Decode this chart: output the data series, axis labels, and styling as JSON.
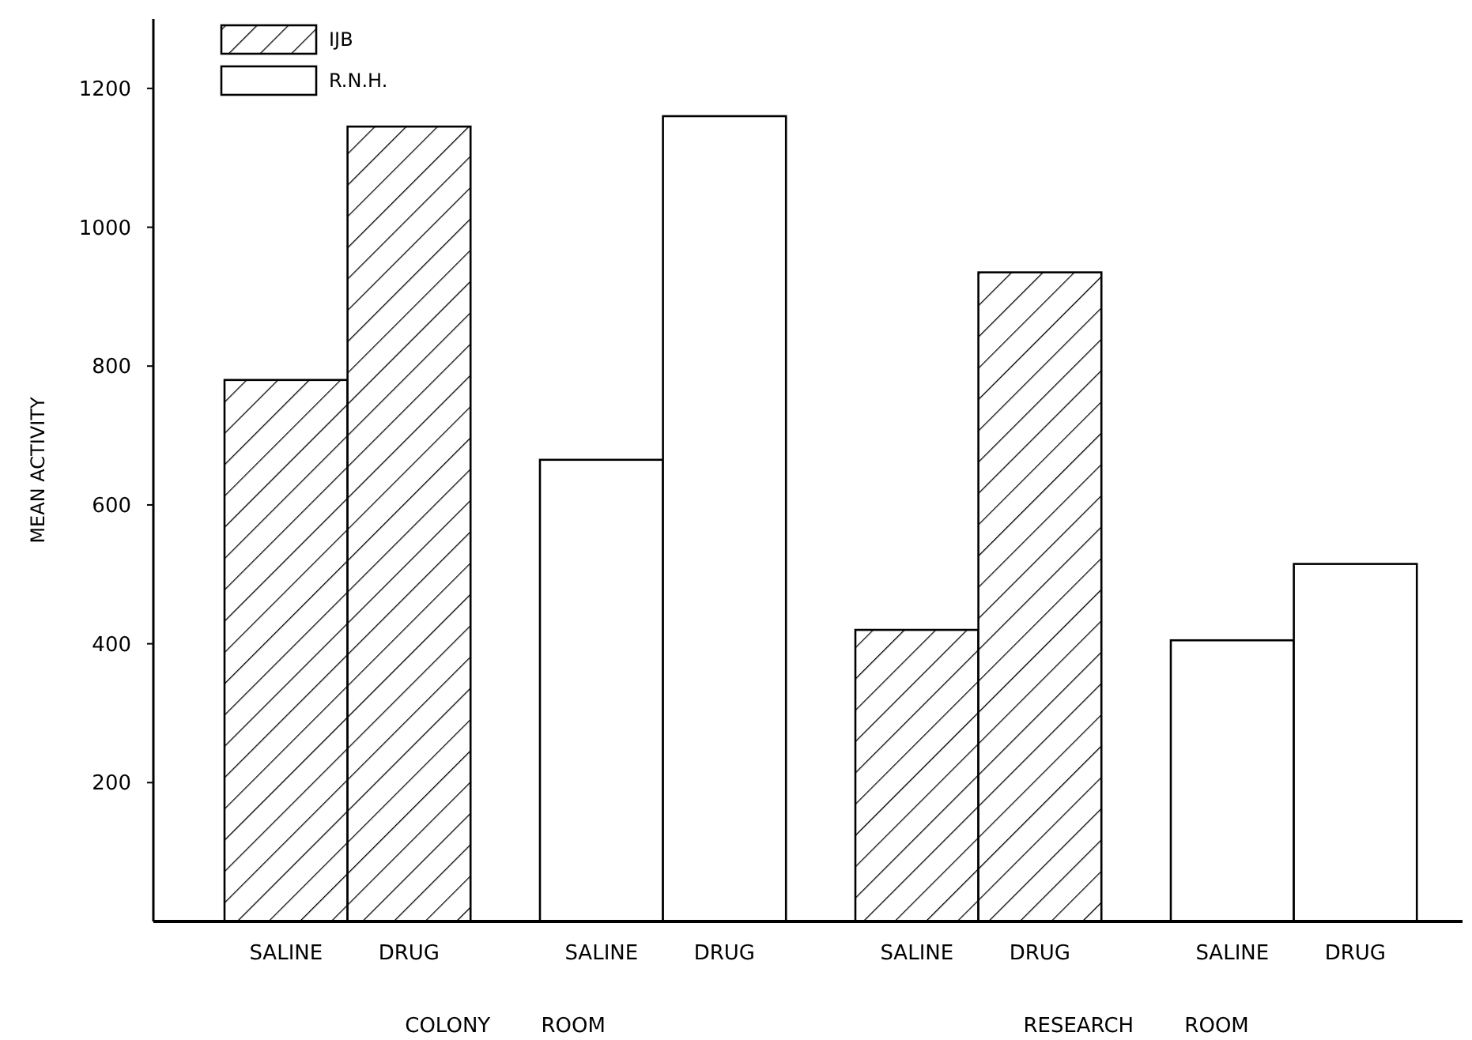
{
  "chart_data": {
    "type": "bar",
    "ylabel": "MEAN ACTIVITY",
    "categories": [
      "SALINE",
      "DRUG",
      "SALINE",
      "DRUG",
      "SALINE",
      "DRUG",
      "SALINE",
      "DRUG"
    ],
    "series": [
      {
        "name": "IJB",
        "color": "#000000",
        "values": [
          780,
          1145,
          null,
          null,
          420,
          935,
          null,
          null
        ]
      },
      {
        "name": "R.N.H.",
        "color": "#ffffff",
        "values": [
          null,
          null,
          665,
          1160,
          null,
          null,
          405,
          515
        ]
      }
    ],
    "ylim": [
      0,
      1300
    ],
    "yticks": [
      200,
      400,
      600,
      800,
      1000,
      1200
    ],
    "grid": false,
    "legend": "top left",
    "annotations": [
      "COLONY ROOM",
      "RESEARCH ROOM"
    ]
  }
}
